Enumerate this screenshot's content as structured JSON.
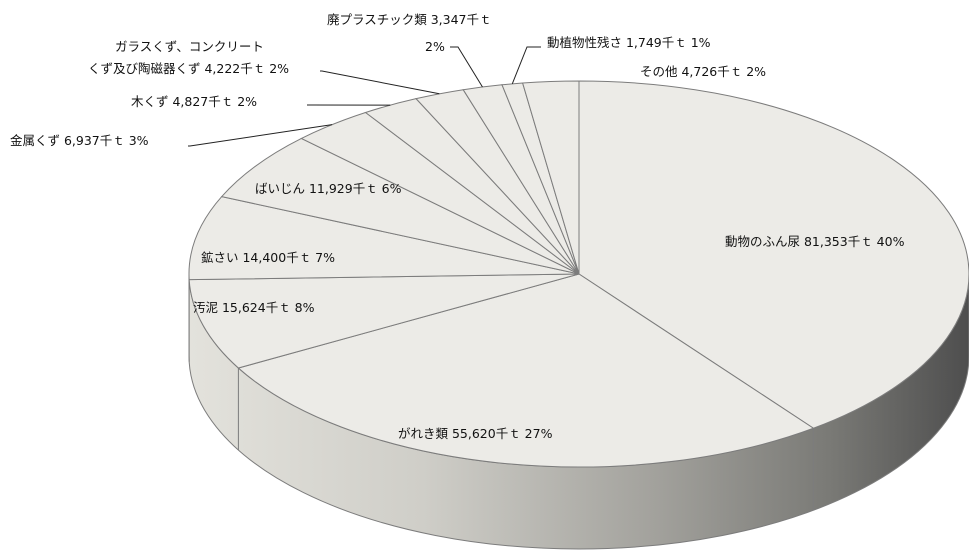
{
  "chart_data": {
    "type": "pie",
    "style": "3d",
    "slices": [
      {
        "name": "動物のふん尿",
        "value_text": "81,353千ｔ",
        "value": 81353,
        "pct_text": "40%"
      },
      {
        "name": "がれき類",
        "value_text": "55,620千ｔ",
        "value": 55620,
        "pct_text": "27%"
      },
      {
        "name": "汚泥",
        "value_text": "15,624千ｔ",
        "value": 15624,
        "pct_text": "8%"
      },
      {
        "name": "鉱さい",
        "value_text": "14,400千ｔ",
        "value": 14400,
        "pct_text": "7%"
      },
      {
        "name": "ばいじん",
        "value_text": "11,929千ｔ",
        "value": 11929,
        "pct_text": "6%"
      },
      {
        "name": "金属くず",
        "value_text": "6,937千ｔ",
        "value": 6937,
        "pct_text": "3%"
      },
      {
        "name": "木くず",
        "value_text": "4,827千ｔ",
        "value": 4827,
        "pct_text": "2%"
      },
      {
        "name": "ガラスくず、コンクリートくず及び陶磁器くず",
        "line1": "ガラスくず、コンクリート",
        "line2": "くず及び陶磁器くず",
        "value_text": "4,222千ｔ",
        "value": 4222,
        "pct_text": "2%"
      },
      {
        "name": "廃プラスチック類",
        "value_text": "3,347千ｔ",
        "value": 3347,
        "pct_text": "2%"
      },
      {
        "name": "動植物性残さ",
        "value_text": "1,749千ｔ",
        "value": 1749,
        "pct_text": "1%"
      },
      {
        "name": "その他",
        "value_text": "4,726千ｔ",
        "value": 4726,
        "pct_text": "2%"
      }
    ],
    "colors": {
      "top": "#ecebe7",
      "edge": "#7c7c7c",
      "leader": "#222222",
      "side_light": "#e3e2dc",
      "side_dark": "#4e4e4e"
    }
  }
}
